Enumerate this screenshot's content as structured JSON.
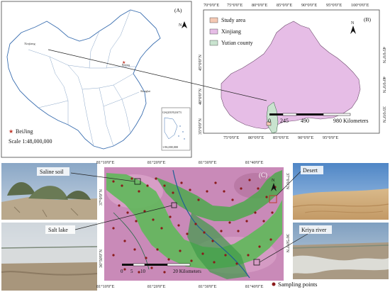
{
  "panels": {
    "a": {
      "label": "(A)",
      "north": "N",
      "beijing_label": "BeiJing",
      "scale_text": "Scale 1:48,000,000",
      "small_labels": [
        "Xinjiang",
        "Beijing",
        "Shanghai"
      ],
      "inset_title": "GS(2019)1673",
      "inset_scale": "1:96,000,000"
    },
    "b": {
      "label": "(B)",
      "north": "N",
      "legend": [
        {
          "label": "Study area",
          "color": "#f5c9b4"
        },
        {
          "label": "Xinjiang",
          "color": "#e6bde6"
        },
        {
          "label": "Yutian county",
          "color": "#c9e3cf"
        }
      ],
      "top_ticks": [
        "70°0'0\"E",
        "75°0'0\"E",
        "80°0'0\"E",
        "85°0'0\"E",
        "90°0'0\"E",
        "95°0'0\"E",
        "100°0'0\"E"
      ],
      "bottom_ticks": [
        "75°0'0\"E",
        "80°0'0\"E",
        "85°0'0\"E",
        "90°0'0\"E",
        "95°0'0\"E"
      ],
      "left_ticks": [
        "45°0'0\"N",
        "40°0'0\"N",
        "35°0'0\"N"
      ],
      "right_ticks": [
        "45°0'0\"N",
        "40°0'0\"N",
        "35°0'0\"N"
      ],
      "scale": {
        "labels": [
          "0",
          "245",
          "490",
          "980 Kilometers"
        ],
        "values_km": [
          0,
          245,
          490,
          980
        ]
      }
    },
    "c": {
      "label": "(C)",
      "north": "N",
      "top_ticks": [
        "81°10'0\"E",
        "81°20'0\"E",
        "81°30'0\"E",
        "81°40'0\"E"
      ],
      "bottom_ticks": [
        "81°10'0\"E",
        "81°20'0\"E",
        "81°30'0\"E",
        "81°40'0\"E"
      ],
      "left_ticks": [
        "37°0'0\"N",
        "36°50'0\"N"
      ],
      "right_ticks": [
        "37°0'0\"N",
        "36°50'0\"N"
      ],
      "scale": {
        "labels": [
          "0",
          "5",
          "10",
          "20 Kilometers"
        ],
        "values_km": [
          0,
          5,
          10,
          20
        ]
      },
      "sampling_label": "Sampling points"
    }
  },
  "photos": {
    "saline_soil": "Saline soil",
    "salt_lake": "Salt lake",
    "desert": "Desert",
    "kriya_river": "Kriya river"
  }
}
